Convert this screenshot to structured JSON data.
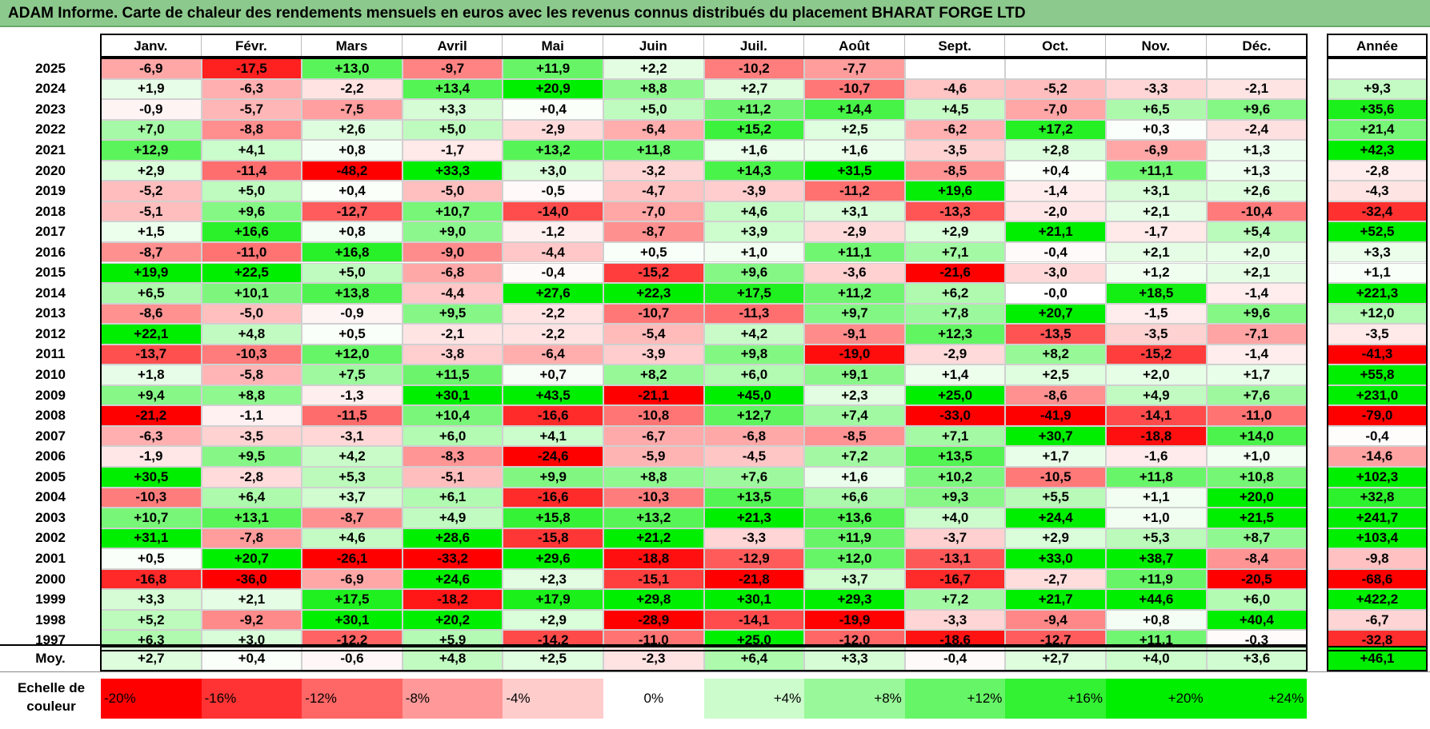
{
  "title": "ADAM Informe. Carte de chaleur des rendements mensuels en euros avec les revenus connus distribués du placement BHARAT FORGE LTD",
  "chart_data": {
    "type": "heatmap",
    "title": "ADAM Informe. Carte de chaleur des rendements mensuels en euros avec les revenus connus distribués du placement BHARAT FORGE LTD",
    "months": [
      "Janv.",
      "Févr.",
      "Mars",
      "Avril",
      "Mai",
      "Juin",
      "Juil.",
      "Août",
      "Sept.",
      "Oct.",
      "Nov.",
      "Déc."
    ],
    "annual_header": "Année",
    "rows": [
      {
        "year": "2025",
        "values": [
          "-6,9",
          "-17,5",
          "+13,0",
          "-9,7",
          "+11,9",
          "+2,2",
          "-10,2",
          "-7,7",
          "",
          "",
          "",
          ""
        ],
        "annual": ""
      },
      {
        "year": "2024",
        "values": [
          "+1,9",
          "-6,3",
          "-2,2",
          "+13,4",
          "+20,9",
          "+8,8",
          "+2,7",
          "-10,7",
          "-4,6",
          "-5,2",
          "-3,3",
          "-2,1"
        ],
        "annual": "+9,3"
      },
      {
        "year": "2023",
        "values": [
          "-0,9",
          "-5,7",
          "-7,5",
          "+3,3",
          "+0,4",
          "+5,0",
          "+11,2",
          "+14,4",
          "+4,5",
          "-7,0",
          "+6,5",
          "+9,6"
        ],
        "annual": "+35,6"
      },
      {
        "year": "2022",
        "values": [
          "+7,0",
          "-8,8",
          "+2,6",
          "+5,0",
          "-2,9",
          "-6,4",
          "+15,2",
          "+2,5",
          "-6,2",
          "+17,2",
          "+0,3",
          "-2,4"
        ],
        "annual": "+21,4"
      },
      {
        "year": "2021",
        "values": [
          "+12,9",
          "+4,1",
          "+0,8",
          "-1,7",
          "+13,2",
          "+11,8",
          "+1,6",
          "+1,6",
          "-3,5",
          "+2,8",
          "-6,9",
          "+1,3"
        ],
        "annual": "+42,3"
      },
      {
        "year": "2020",
        "values": [
          "+2,9",
          "-11,4",
          "-48,2",
          "+33,3",
          "+3,0",
          "-3,2",
          "+14,3",
          "+31,5",
          "-8,5",
          "+0,4",
          "+11,1",
          "+1,3"
        ],
        "annual": "-2,8"
      },
      {
        "year": "2019",
        "values": [
          "-5,2",
          "+5,0",
          "+0,4",
          "-5,0",
          "-0,5",
          "-4,7",
          "-3,9",
          "-11,2",
          "+19,6",
          "-1,4",
          "+3,1",
          "+2,6"
        ],
        "annual": "-4,3"
      },
      {
        "year": "2018",
        "values": [
          "-5,1",
          "+9,6",
          "-12,7",
          "+10,7",
          "-14,0",
          "-7,0",
          "+4,6",
          "+3,1",
          "-13,3",
          "-2,0",
          "+2,1",
          "-10,4"
        ],
        "annual": "-32,4"
      },
      {
        "year": "2017",
        "values": [
          "+1,5",
          "+16,6",
          "+0,8",
          "+9,0",
          "-1,2",
          "-8,7",
          "+3,9",
          "-2,9",
          "+2,9",
          "+21,1",
          "-1,7",
          "+5,4"
        ],
        "annual": "+52,5"
      },
      {
        "year": "2016",
        "values": [
          "-8,7",
          "-11,0",
          "+16,8",
          "-9,0",
          "-4,4",
          "+0,5",
          "+1,0",
          "+11,1",
          "+7,1",
          "-0,4",
          "+2,1",
          "+2,0"
        ],
        "annual": "+3,3"
      },
      {
        "year": "2015",
        "values": [
          "+19,9",
          "+22,5",
          "+5,0",
          "-6,8",
          "-0,4",
          "-15,2",
          "+9,6",
          "-3,6",
          "-21,6",
          "-3,0",
          "+1,2",
          "+2,1"
        ],
        "annual": "+1,1"
      },
      {
        "year": "2014",
        "values": [
          "+6,5",
          "+10,1",
          "+13,8",
          "-4,4",
          "+27,6",
          "+22,3",
          "+17,5",
          "+11,2",
          "+6,2",
          "-0,0",
          "+18,5",
          "-1,4"
        ],
        "annual": "+221,3"
      },
      {
        "year": "2013",
        "values": [
          "-8,6",
          "-5,0",
          "-0,9",
          "+9,5",
          "-2,2",
          "-10,7",
          "-11,3",
          "+9,7",
          "+7,8",
          "+20,7",
          "-1,5",
          "+9,6"
        ],
        "annual": "+12,0"
      },
      {
        "year": "2012",
        "values": [
          "+22,1",
          "+4,8",
          "+0,5",
          "-2,1",
          "-2,2",
          "-5,4",
          "+4,2",
          "-9,1",
          "+12,3",
          "-13,5",
          "-3,5",
          "-7,1"
        ],
        "annual": "-3,5"
      },
      {
        "year": "2011",
        "values": [
          "-13,7",
          "-10,3",
          "+12,0",
          "-3,8",
          "-6,4",
          "-3,9",
          "+9,8",
          "-19,0",
          "-2,9",
          "+8,2",
          "-15,2",
          "-1,4"
        ],
        "annual": "-41,3"
      },
      {
        "year": "2010",
        "values": [
          "+1,8",
          "-5,8",
          "+7,5",
          "+11,5",
          "+0,7",
          "+8,2",
          "+6,0",
          "+9,1",
          "+1,4",
          "+2,5",
          "+2,0",
          "+1,7"
        ],
        "annual": "+55,8"
      },
      {
        "year": "2009",
        "values": [
          "+9,4",
          "+8,8",
          "-1,3",
          "+30,1",
          "+43,5",
          "-21,1",
          "+45,0",
          "+2,3",
          "+25,0",
          "-8,6",
          "+4,9",
          "+7,6"
        ],
        "annual": "+231,0"
      },
      {
        "year": "2008",
        "values": [
          "-21,2",
          "-1,1",
          "-11,5",
          "+10,4",
          "-16,6",
          "-10,8",
          "+12,7",
          "+7,4",
          "-33,0",
          "-41,9",
          "-14,1",
          "-11,0"
        ],
        "annual": "-79,0"
      },
      {
        "year": "2007",
        "values": [
          "-6,3",
          "-3,5",
          "-3,1",
          "+6,0",
          "+4,1",
          "-6,7",
          "-6,8",
          "-8,5",
          "+7,1",
          "+30,7",
          "-18,8",
          "+14,0"
        ],
        "annual": "-0,4"
      },
      {
        "year": "2006",
        "values": [
          "-1,9",
          "+9,5",
          "+4,2",
          "-8,3",
          "-24,6",
          "-5,9",
          "-4,5",
          "+7,2",
          "+13,5",
          "+1,7",
          "-1,6",
          "+1,0"
        ],
        "annual": "-14,6"
      },
      {
        "year": "2005",
        "values": [
          "+30,5",
          "-2,8",
          "+5,3",
          "-5,1",
          "+9,9",
          "+8,8",
          "+7,6",
          "+1,6",
          "+10,2",
          "-10,5",
          "+11,8",
          "+10,8"
        ],
        "annual": "+102,3"
      },
      {
        "year": "2004",
        "values": [
          "-10,3",
          "+6,4",
          "+3,7",
          "+6,1",
          "-16,6",
          "-10,3",
          "+13,5",
          "+6,6",
          "+9,3",
          "+5,5",
          "+1,1",
          "+20,0"
        ],
        "annual": "+32,8"
      },
      {
        "year": "2003",
        "values": [
          "+10,7",
          "+13,1",
          "-8,7",
          "+4,9",
          "+15,8",
          "+13,2",
          "+21,3",
          "+13,6",
          "+4,0",
          "+24,4",
          "+1,0",
          "+21,5"
        ],
        "annual": "+241,7"
      },
      {
        "year": "2002",
        "values": [
          "+31,1",
          "-7,8",
          "+4,6",
          "+28,6",
          "-15,8",
          "+21,2",
          "-3,3",
          "+11,9",
          "-3,7",
          "+2,9",
          "+5,3",
          "+8,7"
        ],
        "annual": "+103,4"
      },
      {
        "year": "2001",
        "values": [
          "+0,5",
          "+20,7",
          "-26,1",
          "-33,2",
          "+29,6",
          "-18,8",
          "-12,9",
          "+12,0",
          "-13,1",
          "+33,0",
          "+38,7",
          "-8,4"
        ],
        "annual": "-9,8"
      },
      {
        "year": "2000",
        "values": [
          "-16,8",
          "-36,0",
          "-6,9",
          "+24,6",
          "+2,3",
          "-15,1",
          "-21,8",
          "+3,7",
          "-16,7",
          "-2,7",
          "+11,9",
          "-20,5"
        ],
        "annual": "-68,6"
      },
      {
        "year": "1999",
        "values": [
          "+3,3",
          "+2,1",
          "+17,5",
          "-18,2",
          "+17,9",
          "+29,8",
          "+30,1",
          "+29,3",
          "+7,2",
          "+21,7",
          "+44,6",
          "+6,0"
        ],
        "annual": "+422,2"
      },
      {
        "year": "1998",
        "values": [
          "+5,2",
          "-9,2",
          "+30,1",
          "+20,2",
          "+2,9",
          "-28,9",
          "-14,1",
          "-19,9",
          "-3,3",
          "-9,4",
          "+0,8",
          "+40,4"
        ],
        "annual": "-6,7"
      },
      {
        "year": "1997",
        "values": [
          "+6,3",
          "+3,0",
          "-12,2",
          "+5,9",
          "-14,2",
          "-11,0",
          "+25,0",
          "-12,0",
          "-18,6",
          "-12,7",
          "+11,1",
          "-0,3"
        ],
        "annual": "-32,8"
      }
    ],
    "average": {
      "label": "Moy.",
      "values": [
        "+2,7",
        "+0,4",
        "-0,6",
        "+4,8",
        "+2,5",
        "-2,3",
        "+6,4",
        "+3,3",
        "-0,4",
        "+2,7",
        "+4,0",
        "+3,6"
      ],
      "annual": "+46,1"
    },
    "scale": {
      "label_line1": "Echelle de",
      "label_line2": "couleur",
      "steps": [
        {
          "label": "-20%",
          "value": -20
        },
        {
          "label": "-16%",
          "value": -16
        },
        {
          "label": "-12%",
          "value": -12
        },
        {
          "label": "-8%",
          "value": -8
        },
        {
          "label": "-4%",
          "value": -4
        },
        {
          "label": "0%",
          "value": 0
        },
        {
          "label": "+4%",
          "value": 4
        },
        {
          "label": "+8%",
          "value": 8
        },
        {
          "label": "+12%",
          "value": 12
        },
        {
          "label": "+16%",
          "value": 16
        },
        {
          "label": "+20%",
          "value": 20
        },
        {
          "label": "+24%",
          "value": 24
        }
      ]
    },
    "colors": {
      "negative_max": "#ff0000",
      "neutral": "#ffffff",
      "positive_max": "#00ee00",
      "title_background": "#8cc98c"
    }
  }
}
